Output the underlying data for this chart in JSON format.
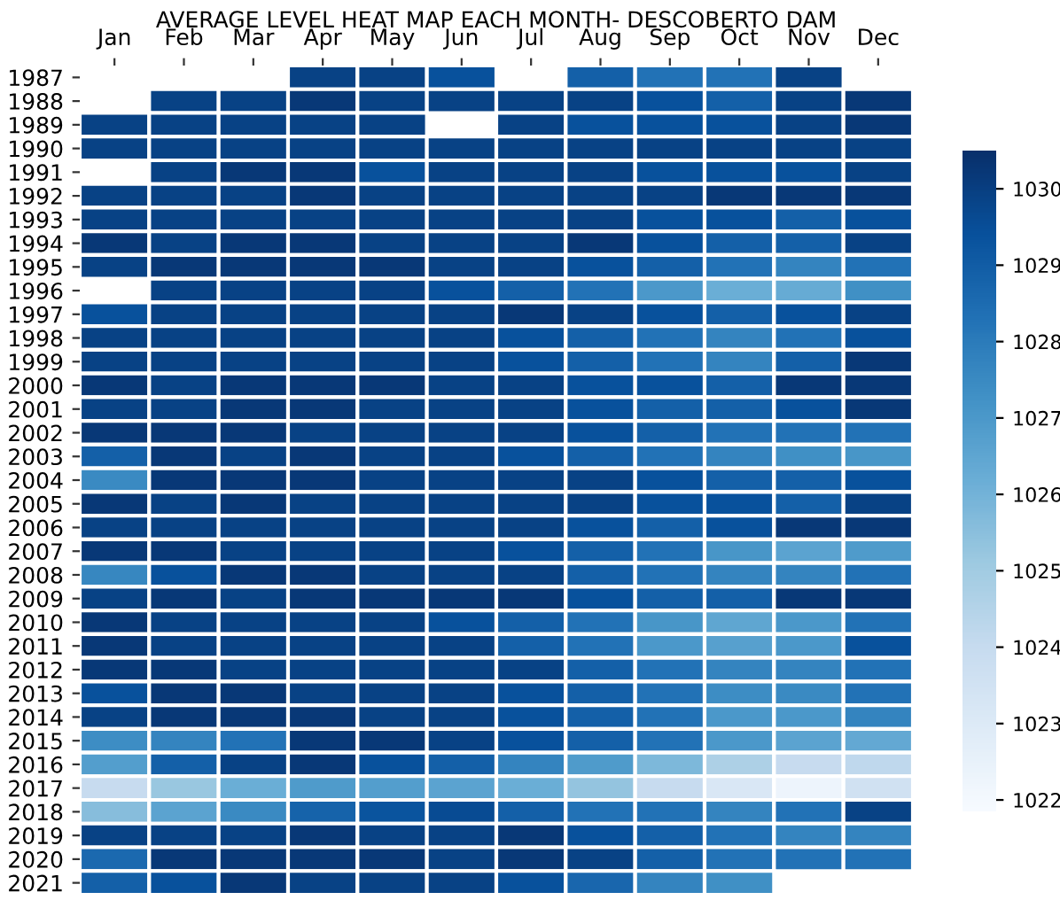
{
  "chart_data": {
    "type": "heatmap",
    "title": "AVERAGE LEVEL HEAT MAP EACH MONTH- DESCOBERTO DAM",
    "categories": [
      "Jan",
      "Feb",
      "Mar",
      "Apr",
      "May",
      "Jun",
      "Jul",
      "Aug",
      "Sep",
      "Oct",
      "Nov",
      "Dec"
    ],
    "y_categories": [
      "1987",
      "1988",
      "1989",
      "1990",
      "1991",
      "1992",
      "1993",
      "1994",
      "1995",
      "1996",
      "1997",
      "1998",
      "1999",
      "2000",
      "2001",
      "2002",
      "2003",
      "2004",
      "2005",
      "2006",
      "2007",
      "2008",
      "2009",
      "2010",
      "2011",
      "2012",
      "2013",
      "2014",
      "2015",
      "2016",
      "2017",
      "2018",
      "2019",
      "2020",
      "2021"
    ],
    "cells": [
      [
        null,
        null,
        null,
        1029.9,
        1029.9,
        1029.4,
        null,
        1028.9,
        1028.3,
        1028.3,
        1029.9,
        null
      ],
      [
        null,
        1029.9,
        1029.9,
        1030.2,
        1029.9,
        1029.9,
        1029.9,
        1029.9,
        1029.4,
        1028.9,
        1029.9,
        1030.2
      ],
      [
        1029.9,
        1029.9,
        1029.9,
        1029.9,
        1029.9,
        null,
        1029.9,
        1029.4,
        1029.4,
        1029.4,
        1029.9,
        1030.2
      ],
      [
        1029.9,
        1029.9,
        1029.9,
        1029.9,
        1029.9,
        1029.9,
        1029.9,
        1029.9,
        1029.9,
        1029.9,
        1029.9,
        1029.9
      ],
      [
        null,
        1029.9,
        1030.2,
        1030.2,
        1029.4,
        1029.9,
        1029.9,
        1029.9,
        1029.4,
        1029.4,
        1029.4,
        1029.9
      ],
      [
        1029.9,
        1029.9,
        1029.9,
        1030.2,
        1029.9,
        1029.9,
        1029.9,
        1029.9,
        1029.9,
        1030.2,
        1030.2,
        1030.2
      ],
      [
        1029.9,
        1029.9,
        1029.9,
        1029.9,
        1029.9,
        1029.9,
        1029.9,
        1029.9,
        1029.4,
        1029.4,
        1028.9,
        1029.4
      ],
      [
        1030.2,
        1029.9,
        1030.2,
        1030.2,
        1029.9,
        1029.9,
        1029.9,
        1030.2,
        1029.4,
        1028.9,
        1028.9,
        1029.9
      ],
      [
        1029.9,
        1030.2,
        1030.2,
        1030.2,
        1030.2,
        1029.9,
        1029.9,
        1029.4,
        1028.9,
        1028.3,
        1027.7,
        1028.3
      ],
      [
        null,
        1029.9,
        1029.9,
        1029.9,
        1029.9,
        1029.4,
        1028.9,
        1028.3,
        1027.0,
        1026.2,
        1026.3,
        1027.3
      ],
      [
        1029.4,
        1029.9,
        1029.9,
        1029.9,
        1029.9,
        1029.9,
        1030.2,
        1029.9,
        1029.4,
        1028.9,
        1029.4,
        1029.9
      ],
      [
        1029.9,
        1029.9,
        1029.9,
        1029.9,
        1029.9,
        1029.9,
        1029.4,
        1028.9,
        1028.3,
        1027.7,
        1028.3,
        1029.4
      ],
      [
        1029.9,
        1029.9,
        1029.9,
        1029.9,
        1029.9,
        1029.9,
        1029.4,
        1028.9,
        1028.3,
        1027.7,
        1028.9,
        1030.2
      ],
      [
        1030.2,
        1029.9,
        1030.2,
        1030.2,
        1030.2,
        1029.9,
        1029.9,
        1029.4,
        1029.4,
        1028.9,
        1030.2,
        1030.2
      ],
      [
        1029.9,
        1029.9,
        1030.2,
        1030.2,
        1029.9,
        1029.9,
        1029.9,
        1029.4,
        1028.9,
        1028.9,
        1029.4,
        1030.2
      ],
      [
        1030.2,
        1030.2,
        1030.2,
        1029.9,
        1029.9,
        1029.9,
        1029.9,
        1029.4,
        1028.9,
        1028.3,
        1028.3,
        1028.3
      ],
      [
        1028.9,
        1030.2,
        1029.9,
        1030.2,
        1029.9,
        1029.9,
        1029.4,
        1028.9,
        1028.3,
        1027.7,
        1027.3,
        1027.1
      ],
      [
        1027.5,
        1030.2,
        1030.2,
        1030.2,
        1029.9,
        1029.9,
        1029.9,
        1029.9,
        1029.4,
        1028.9,
        1028.9,
        1029.4
      ],
      [
        1030.2,
        1029.9,
        1030.2,
        1029.9,
        1029.9,
        1029.9,
        1029.9,
        1029.9,
        1029.4,
        1029.4,
        1028.9,
        1029.9
      ],
      [
        1029.9,
        1029.9,
        1029.9,
        1029.9,
        1029.9,
        1029.9,
        1029.9,
        1029.4,
        1028.9,
        1029.4,
        1030.2,
        1030.2
      ],
      [
        1030.2,
        1030.2,
        1029.9,
        1029.9,
        1029.9,
        1029.9,
        1029.4,
        1028.9,
        1028.3,
        1027.1,
        1026.6,
        1026.9
      ],
      [
        1027.6,
        1029.4,
        1030.2,
        1030.2,
        1029.9,
        1029.9,
        1029.9,
        1028.9,
        1028.3,
        1027.7,
        1027.7,
        1028.3
      ],
      [
        1029.9,
        1030.2,
        1029.9,
        1030.2,
        1030.2,
        1030.2,
        1030.2,
        1029.4,
        1028.9,
        1028.9,
        1030.2,
        1030.2
      ],
      [
        1030.2,
        1029.9,
        1029.9,
        1029.9,
        1029.9,
        1029.4,
        1028.9,
        1028.3,
        1027.1,
        1026.5,
        1027.0,
        1028.3
      ],
      [
        1030.2,
        1029.9,
        1029.9,
        1029.9,
        1029.9,
        1029.9,
        1028.9,
        1028.3,
        1027.0,
        1026.7,
        1027.0,
        1029.4
      ],
      [
        1030.2,
        1030.2,
        1029.9,
        1029.9,
        1029.9,
        1029.9,
        1029.9,
        1028.9,
        1028.3,
        1027.7,
        1027.7,
        1028.3
      ],
      [
        1029.4,
        1030.2,
        1030.2,
        1029.9,
        1029.9,
        1029.9,
        1029.4,
        1028.9,
        1028.3,
        1027.4,
        1027.5,
        1028.3
      ],
      [
        1029.9,
        1030.2,
        1030.2,
        1030.2,
        1029.9,
        1029.9,
        1029.4,
        1028.9,
        1028.3,
        1027.0,
        1027.0,
        1027.7
      ],
      [
        1027.4,
        1027.7,
        1028.3,
        1030.2,
        1030.2,
        1029.9,
        1029.4,
        1028.9,
        1028.3,
        1027.0,
        1026.6,
        1026.4
      ],
      [
        1026.8,
        1028.9,
        1029.9,
        1030.2,
        1029.4,
        1028.9,
        1027.7,
        1026.9,
        1025.8,
        1024.7,
        1024.0,
        1024.2
      ],
      [
        1024.0,
        1025.2,
        1026.2,
        1026.9,
        1026.8,
        1026.6,
        1026.2,
        1025.3,
        1024.0,
        1023.2,
        1022.3,
        1023.6
      ],
      [
        1025.6,
        1026.6,
        1027.5,
        1028.8,
        1029.3,
        1029.6,
        1028.9,
        1028.3,
        1028.3,
        1027.7,
        1028.3,
        1029.9
      ],
      [
        1029.9,
        1029.9,
        1029.9,
        1030.2,
        1029.9,
        1029.9,
        1030.2,
        1029.4,
        1028.9,
        1028.3,
        1027.7,
        1027.7
      ],
      [
        1028.6,
        1030.2,
        1030.2,
        1030.2,
        1030.2,
        1029.9,
        1030.2,
        1029.9,
        1028.9,
        1028.3,
        1028.3,
        1028.3
      ],
      [
        1028.9,
        1029.4,
        1030.2,
        1029.9,
        1029.9,
        1029.9,
        1029.4,
        1028.7,
        1027.7,
        1027.3,
        null,
        null
      ]
    ],
    "clim": [
      1021.85,
      1030.5
    ],
    "cticks": [
      1022,
      1023,
      1024,
      1025,
      1026,
      1027,
      1028,
      1029,
      1030
    ]
  }
}
